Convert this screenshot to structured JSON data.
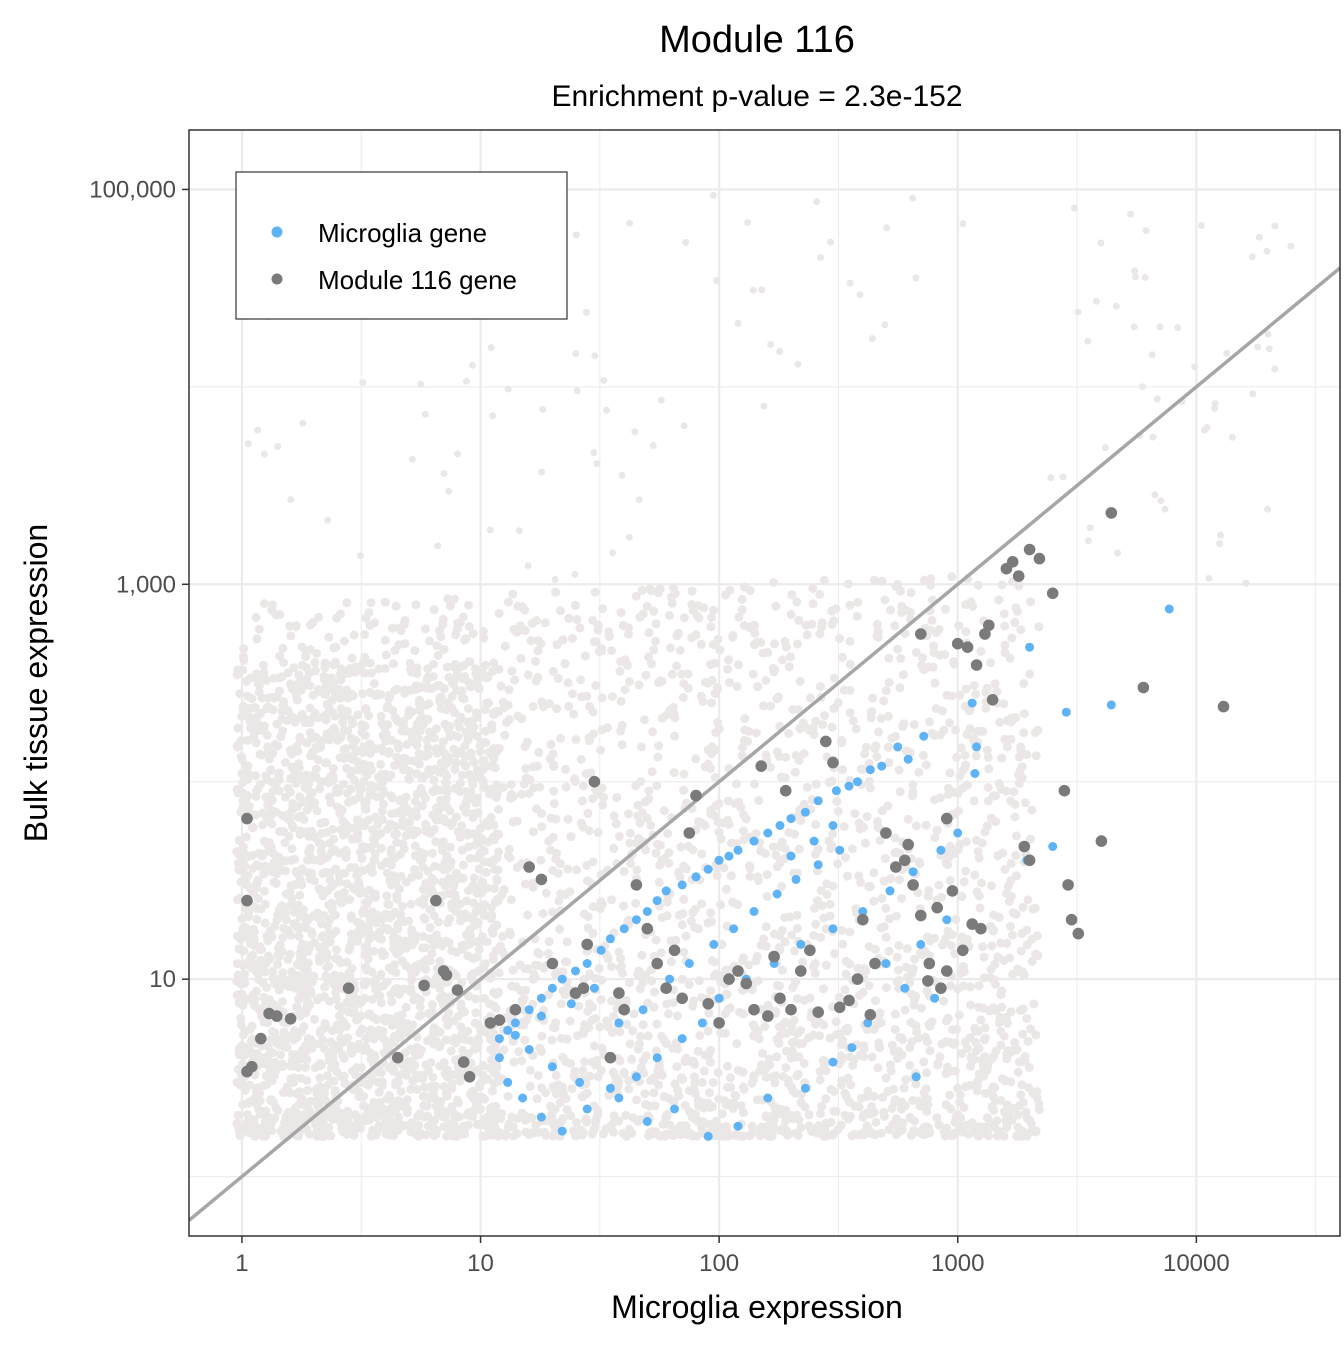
{
  "chart_data": {
    "type": "scatter",
    "title": "Module 116",
    "subtitle": "Enrichment p-value = 2.3e-152",
    "xlabel": "Microglia expression",
    "ylabel": "Bulk tissue expression",
    "x_scale": "log10",
    "y_scale": "log10",
    "xlim": [
      0.6,
      40000
    ],
    "ylim": [
      0.5,
      200000
    ],
    "x_ticks": [
      1,
      10,
      100,
      1000,
      10000
    ],
    "x_tick_labels": [
      "1",
      "10",
      "100",
      "1000",
      "10000"
    ],
    "y_ticks": [
      10,
      1000,
      100000
    ],
    "y_tick_labels": [
      "10",
      "1,000",
      "100,000"
    ],
    "grid": true,
    "legend_position": "top-left",
    "reference_line": {
      "type": "identity",
      "color": "#a6a6a6"
    },
    "colors": {
      "background_genes": "#ebe7e6",
      "microglia_gene": "#5db3f5",
      "module_gene": "#7a7a7a",
      "reference_line": "#a6a6a6",
      "grid": "#ebebeb"
    },
    "series": [
      {
        "name": "Microglia gene",
        "color": "#5db3f5",
        "points": [
          [
            7700,
            750
          ],
          [
            2000,
            480
          ],
          [
            1150,
            250
          ],
          [
            4400,
            245
          ],
          [
            2850,
            225
          ],
          [
            1200,
            150
          ],
          [
            1180,
            110
          ],
          [
            720,
            170
          ],
          [
            620,
            130
          ],
          [
            560,
            150
          ],
          [
            480,
            120
          ],
          [
            430,
            115
          ],
          [
            380,
            100
          ],
          [
            350,
            95
          ],
          [
            310,
            90
          ],
          [
            260,
            80
          ],
          [
            230,
            70
          ],
          [
            200,
            65
          ],
          [
            180,
            60
          ],
          [
            160,
            55
          ],
          [
            140,
            50
          ],
          [
            120,
            45
          ],
          [
            110,
            42
          ],
          [
            100,
            40
          ],
          [
            90,
            36
          ],
          [
            80,
            33
          ],
          [
            70,
            30
          ],
          [
            60,
            28
          ],
          [
            55,
            25
          ],
          [
            50,
            22
          ],
          [
            45,
            20
          ],
          [
            40,
            18
          ],
          [
            35,
            16
          ],
          [
            32,
            14
          ],
          [
            28,
            12
          ],
          [
            25,
            11
          ],
          [
            22,
            10
          ],
          [
            20,
            9
          ],
          [
            18,
            8
          ],
          [
            16,
            7
          ],
          [
            14,
            6
          ],
          [
            13,
            5.5
          ],
          [
            12,
            5
          ],
          [
            12,
            4
          ],
          [
            13,
            3
          ],
          [
            15,
            2.5
          ],
          [
            18,
            2
          ],
          [
            22,
            1.7
          ],
          [
            28,
            2.2
          ],
          [
            35,
            2.8
          ],
          [
            45,
            3.2
          ],
          [
            55,
            4
          ],
          [
            70,
            5
          ],
          [
            85,
            6
          ],
          [
            100,
            8
          ],
          [
            130,
            10
          ],
          [
            170,
            12
          ],
          [
            220,
            15
          ],
          [
            300,
            18
          ],
          [
            400,
            22
          ],
          [
            520,
            28
          ],
          [
            650,
            35
          ],
          [
            850,
            45
          ],
          [
            1000,
            55
          ],
          [
            900,
            20
          ],
          [
            700,
            15
          ],
          [
            500,
            12
          ],
          [
            600,
            9
          ],
          [
            800,
            8
          ],
          [
            420,
            6
          ],
          [
            360,
            4.5
          ],
          [
            300,
            3.8
          ],
          [
            230,
            2.8
          ],
          [
            160,
            2.5
          ],
          [
            120,
            1.8
          ],
          [
            90,
            1.6
          ],
          [
            65,
            2.2
          ],
          [
            50,
            1.9
          ],
          [
            38,
            2.5
          ],
          [
            26,
            3
          ],
          [
            20,
            3.6
          ],
          [
            16,
            4.4
          ],
          [
            14,
            5.2
          ],
          [
            18,
            6.5
          ],
          [
            24,
            7.5
          ],
          [
            30,
            9
          ],
          [
            38,
            6
          ],
          [
            48,
            7
          ],
          [
            62,
            10
          ],
          [
            75,
            12
          ],
          [
            95,
            15
          ],
          [
            115,
            18
          ],
          [
            140,
            22
          ],
          [
            175,
            27
          ],
          [
            210,
            32
          ],
          [
            260,
            38
          ],
          [
            320,
            45
          ],
          [
            250,
            50
          ],
          [
            300,
            60
          ],
          [
            200,
            42
          ],
          [
            2500,
            47
          ],
          [
            1950,
            40
          ],
          [
            670,
            3.2
          ]
        ]
      },
      {
        "name": "Module 116 gene",
        "color": "#7a7a7a",
        "points": [
          [
            1.05,
            65
          ],
          [
            1.05,
            25
          ],
          [
            1.05,
            3.4
          ],
          [
            1.1,
            3.6
          ],
          [
            1.2,
            5
          ],
          [
            1.3,
            6.7
          ],
          [
            1.4,
            6.5
          ],
          [
            1.6,
            6.3
          ],
          [
            2.8,
            9
          ],
          [
            4.5,
            4
          ],
          [
            5.8,
            9.3
          ],
          [
            6.5,
            25
          ],
          [
            7,
            11
          ],
          [
            7.2,
            10.5
          ],
          [
            8,
            8.8
          ],
          [
            8.5,
            3.8
          ],
          [
            9,
            3.2
          ],
          [
            11,
            6
          ],
          [
            12,
            6.2
          ],
          [
            14,
            7
          ],
          [
            16,
            37
          ],
          [
            18,
            32
          ],
          [
            20,
            12
          ],
          [
            25,
            8.5
          ],
          [
            27,
            9
          ],
          [
            28,
            15
          ],
          [
            30,
            100
          ],
          [
            35,
            4
          ],
          [
            38,
            8.5
          ],
          [
            40,
            7
          ],
          [
            45,
            30
          ],
          [
            50,
            18
          ],
          [
            55,
            12
          ],
          [
            60,
            9
          ],
          [
            65,
            14
          ],
          [
            70,
            8
          ],
          [
            75,
            55
          ],
          [
            80,
            85
          ],
          [
            90,
            7.5
          ],
          [
            100,
            6
          ],
          [
            110,
            10
          ],
          [
            120,
            11
          ],
          [
            130,
            9.5
          ],
          [
            140,
            7
          ],
          [
            150,
            120
          ],
          [
            160,
            6.5
          ],
          [
            170,
            13
          ],
          [
            180,
            8
          ],
          [
            190,
            90
          ],
          [
            200,
            7
          ],
          [
            220,
            11
          ],
          [
            240,
            14
          ],
          [
            260,
            6.8
          ],
          [
            280,
            160
          ],
          [
            300,
            125
          ],
          [
            320,
            7.2
          ],
          [
            350,
            7.8
          ],
          [
            380,
            10
          ],
          [
            400,
            20
          ],
          [
            430,
            6.6
          ],
          [
            450,
            12
          ],
          [
            500,
            55
          ],
          [
            550,
            37
          ],
          [
            620,
            48
          ],
          [
            700,
            560
          ],
          [
            760,
            12
          ],
          [
            820,
            23
          ],
          [
            900,
            65
          ],
          [
            1000,
            500
          ],
          [
            1100,
            480
          ],
          [
            1200,
            390
          ],
          [
            1300,
            560
          ],
          [
            1350,
            620
          ],
          [
            1400,
            260
          ],
          [
            1600,
            1200
          ],
          [
            1700,
            1300
          ],
          [
            1800,
            1100
          ],
          [
            2000,
            1500
          ],
          [
            2200,
            1350
          ],
          [
            2500,
            900
          ],
          [
            1900,
            47
          ],
          [
            2000,
            40
          ],
          [
            2800,
            90
          ],
          [
            2900,
            30
          ],
          [
            3000,
            20
          ],
          [
            3200,
            17
          ],
          [
            4000,
            50
          ],
          [
            4400,
            2300
          ],
          [
            6000,
            300
          ],
          [
            13000,
            240
          ],
          [
            1250,
            18
          ],
          [
            1150,
            19
          ],
          [
            900,
            11
          ],
          [
            700,
            21
          ],
          [
            650,
            30
          ],
          [
            600,
            40
          ],
          [
            950,
            28
          ],
          [
            1050,
            14
          ],
          [
            850,
            9
          ],
          [
            750,
            9.8
          ]
        ]
      }
    ]
  }
}
